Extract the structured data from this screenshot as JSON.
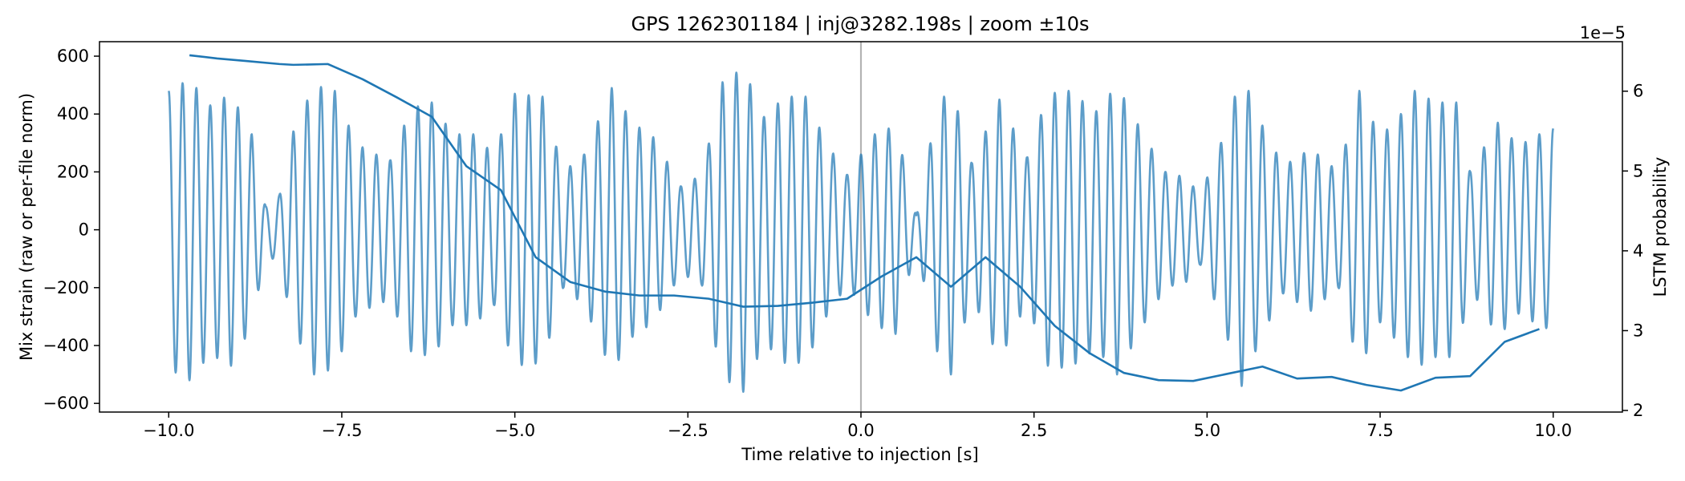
{
  "chart_data": {
    "type": "line",
    "title": "GPS 1262301184 | inj@3282.198s | zoom ±10s",
    "xlabel": "Time relative to injection [s]",
    "ylabel_left": "Mix strain (raw or per-file norm)",
    "ylabel_right": "LSTM probability",
    "right_axis_offset_label": "1e−5",
    "xlim": [
      -11,
      11
    ],
    "ylim_left": [
      -630,
      650
    ],
    "ylim_right": [
      1.98,
      6.62
    ],
    "x_ticks": [
      -10.0,
      -7.5,
      -5.0,
      -2.5,
      0.0,
      2.5,
      5.0,
      7.5,
      10.0
    ],
    "x_tick_labels": [
      "−10.0",
      "−7.5",
      "−5.0",
      "−2.5",
      "0.0",
      "2.5",
      "5.0",
      "7.5",
      "10.0"
    ],
    "y_left_ticks": [
      -600,
      -400,
      -200,
      0,
      200,
      400,
      600
    ],
    "y_left_tick_labels": [
      "−600",
      "−400",
      "−200",
      "0",
      "200",
      "400",
      "600"
    ],
    "y_right_ticks": [
      2,
      3,
      4,
      5,
      6
    ],
    "y_right_tick_labels": [
      "2",
      "3",
      "4",
      "5",
      "6"
    ],
    "vline_x": 0.0,
    "grid": false,
    "colors": {
      "strain": "#1f77b4",
      "strain_opacity": 0.72,
      "prob": "#1f77b4",
      "vline": "#b3b3b3",
      "axes": "#000000"
    },
    "strain_series": {
      "name": "Mix strain",
      "axis": "left",
      "x_range": [
        -10.0,
        10.0
      ],
      "carrier_hz": 5.0,
      "envelope_points": [
        [
          -10.0,
          480
        ],
        [
          -9.7,
          520
        ],
        [
          -9.4,
          430
        ],
        [
          -9.1,
          470
        ],
        [
          -8.8,
          330
        ],
        [
          -8.6,
          80
        ],
        [
          -8.4,
          120
        ],
        [
          -8.2,
          340
        ],
        [
          -7.9,
          500
        ],
        [
          -7.6,
          480
        ],
        [
          -7.3,
          300
        ],
        [
          -7.1,
          270
        ],
        [
          -6.8,
          240
        ],
        [
          -6.5,
          420
        ],
        [
          -6.2,
          440
        ],
        [
          -5.9,
          330
        ],
        [
          -5.6,
          330
        ],
        [
          -5.3,
          260
        ],
        [
          -5.0,
          470
        ],
        [
          -4.6,
          460
        ],
        [
          -4.3,
          200
        ],
        [
          -4.0,
          260
        ],
        [
          -3.6,
          490
        ],
        [
          -3.3,
          370
        ],
        [
          -3.0,
          320
        ],
        [
          -2.6,
          150
        ],
        [
          -2.3,
          190
        ],
        [
          -2.0,
          510
        ],
        [
          -1.7,
          560
        ],
        [
          -1.4,
          390
        ],
        [
          -1.1,
          460
        ],
        [
          -0.8,
          460
        ],
        [
          -0.5,
          300
        ],
        [
          -0.2,
          190
        ],
        [
          0.2,
          330
        ],
        [
          0.5,
          360
        ],
        [
          0.8,
          50
        ],
        [
          1.1,
          420
        ],
        [
          1.3,
          500
        ],
        [
          1.6,
          230
        ],
        [
          2.0,
          450
        ],
        [
          2.4,
          250
        ],
        [
          2.7,
          470
        ],
        [
          3.0,
          480
        ],
        [
          3.4,
          410
        ],
        [
          3.7,
          500
        ],
        [
          4.1,
          320
        ],
        [
          4.4,
          200
        ],
        [
          4.7,
          180
        ],
        [
          4.9,
          120
        ],
        [
          5.2,
          300
        ],
        [
          5.5,
          540
        ],
        [
          5.8,
          360
        ],
        [
          6.1,
          220
        ],
        [
          6.5,
          280
        ],
        [
          6.9,
          200
        ],
        [
          7.2,
          480
        ],
        [
          7.5,
          320
        ],
        [
          7.8,
          400
        ],
        [
          8.0,
          480
        ],
        [
          8.3,
          440
        ],
        [
          8.6,
          440
        ],
        [
          8.8,
          200
        ],
        [
          9.2,
          370
        ],
        [
          9.5,
          290
        ],
        [
          9.8,
          330
        ],
        [
          10.0,
          350
        ]
      ]
    },
    "probability_series": {
      "name": "LSTM probability",
      "axis": "right",
      "scale": "1e-5",
      "x": [
        -9.7,
        -9.3,
        -8.9,
        -8.4,
        -8.2,
        -7.7,
        -7.2,
        -6.7,
        -6.2,
        -5.7,
        -5.2,
        -4.7,
        -4.2,
        -3.7,
        -3.2,
        -2.7,
        -2.2,
        -1.7,
        -1.2,
        -0.7,
        -0.2,
        0.3,
        0.8,
        1.3,
        1.8,
        2.3,
        2.8,
        3.3,
        3.8,
        4.3,
        4.8,
        5.3,
        5.8,
        6.3,
        6.8,
        7.3,
        7.8,
        8.3,
        8.8,
        9.3,
        9.8
      ],
      "y": [
        6.45,
        6.41,
        6.38,
        6.34,
        6.33,
        6.34,
        6.15,
        5.92,
        5.68,
        5.06,
        4.76,
        3.92,
        3.61,
        3.49,
        3.44,
        3.44,
        3.4,
        3.3,
        3.31,
        3.35,
        3.4,
        3.68,
        3.92,
        3.55,
        3.92,
        3.55,
        3.06,
        2.72,
        2.47,
        2.38,
        2.37,
        2.46,
        2.55,
        2.4,
        2.42,
        2.32,
        2.25,
        2.41,
        2.43,
        2.86,
        3.02
      ]
    }
  }
}
